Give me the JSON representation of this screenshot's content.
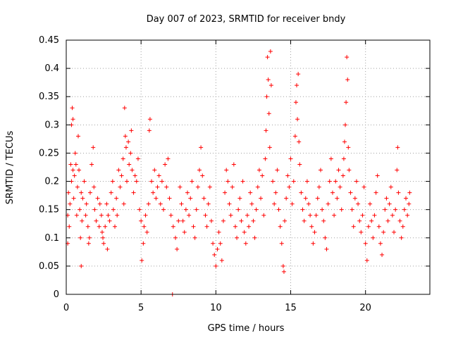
{
  "chart_data": {
    "type": "scatter",
    "title": "Day 007 of 2023, SRMTID for receiver bndy",
    "xlabel": "GPS time / hours",
    "ylabel": "SRMTID / TECUs",
    "xlim": [
      0,
      24.3
    ],
    "ylim": [
      0,
      0.45
    ],
    "x_ticks": [
      0,
      5,
      10,
      15,
      20
    ],
    "y_ticks": [
      0,
      0.05,
      0.1,
      0.15,
      0.2,
      0.25,
      0.3,
      0.35,
      0.4,
      0.45
    ],
    "x_tick_labels": [
      "0",
      "5",
      "10",
      "15",
      "20"
    ],
    "y_tick_labels": [
      "0",
      "0.05",
      "0.1",
      "0.15",
      "0.2",
      "0.25",
      "0.3",
      "0.35",
      "0.4",
      "0.45"
    ],
    "grid": true,
    "marker": "plus",
    "color": "#ff0000",
    "series": [
      {
        "name": "SRMTID",
        "points": [
          [
            0.1,
            0.14
          ],
          [
            0.1,
            0.09
          ],
          [
            0.15,
            0.18
          ],
          [
            0.2,
            0.12
          ],
          [
            0.25,
            0.16
          ],
          [
            0.3,
            0.23
          ],
          [
            0.35,
            0.3
          ],
          [
            0.35,
            0.2
          ],
          [
            0.4,
            0.33
          ],
          [
            0.45,
            0.31
          ],
          [
            0.45,
            0.22
          ],
          [
            0.5,
            0.17
          ],
          [
            0.55,
            0.21
          ],
          [
            0.6,
            0.25
          ],
          [
            0.65,
            0.23
          ],
          [
            0.7,
            0.14
          ],
          [
            0.75,
            0.19
          ],
          [
            0.8,
            0.28
          ],
          [
            0.85,
            0.22
          ],
          [
            0.9,
            0.15
          ],
          [
            0.95,
            0.1
          ],
          [
            1.0,
            0.05
          ],
          [
            1.0,
            0.18
          ],
          [
            1.05,
            0.13
          ],
          [
            1.1,
            0.17
          ],
          [
            1.2,
            0.2
          ],
          [
            1.3,
            0.14
          ],
          [
            1.35,
            0.16
          ],
          [
            1.45,
            0.12
          ],
          [
            1.5,
            0.09
          ],
          [
            1.55,
            0.1
          ],
          [
            1.6,
            0.18
          ],
          [
            1.7,
            0.23
          ],
          [
            1.8,
            0.26
          ],
          [
            1.85,
            0.19
          ],
          [
            1.9,
            0.15
          ],
          [
            2.0,
            0.13
          ],
          [
            2.1,
            0.17
          ],
          [
            2.2,
            0.12
          ],
          [
            2.25,
            0.16
          ],
          [
            2.35,
            0.14
          ],
          [
            2.4,
            0.11
          ],
          [
            2.45,
            0.1
          ],
          [
            2.5,
            0.09
          ],
          [
            2.6,
            0.12
          ],
          [
            2.7,
            0.16
          ],
          [
            2.75,
            0.08
          ],
          [
            2.8,
            0.14
          ],
          [
            2.9,
            0.13
          ],
          [
            3.0,
            0.18
          ],
          [
            3.1,
            0.2
          ],
          [
            3.15,
            0.15
          ],
          [
            3.25,
            0.12
          ],
          [
            3.35,
            0.17
          ],
          [
            3.4,
            0.14
          ],
          [
            3.5,
            0.22
          ],
          [
            3.6,
            0.19
          ],
          [
            3.7,
            0.21
          ],
          [
            3.8,
            0.24
          ],
          [
            3.85,
            0.16
          ],
          [
            3.9,
            0.33
          ],
          [
            3.95,
            0.28
          ],
          [
            4.0,
            0.26
          ],
          [
            4.05,
            0.2
          ],
          [
            4.15,
            0.27
          ],
          [
            4.2,
            0.23
          ],
          [
            4.3,
            0.25
          ],
          [
            4.35,
            0.29
          ],
          [
            4.4,
            0.22
          ],
          [
            4.5,
            0.18
          ],
          [
            4.6,
            0.21
          ],
          [
            4.7,
            0.2
          ],
          [
            4.8,
            0.24
          ],
          [
            4.9,
            0.15
          ],
          [
            5.0,
            0.13
          ],
          [
            5.05,
            0.06
          ],
          [
            5.15,
            0.09
          ],
          [
            5.2,
            0.12
          ],
          [
            5.3,
            0.14
          ],
          [
            5.4,
            0.11
          ],
          [
            5.5,
            0.16
          ],
          [
            5.55,
            0.29
          ],
          [
            5.6,
            0.31
          ],
          [
            5.7,
            0.2
          ],
          [
            5.8,
            0.18
          ],
          [
            5.9,
            0.22
          ],
          [
            6.0,
            0.17
          ],
          [
            6.1,
            0.19
          ],
          [
            6.2,
            0.21
          ],
          [
            6.3,
            0.16
          ],
          [
            6.4,
            0.2
          ],
          [
            6.5,
            0.15
          ],
          [
            6.6,
            0.23
          ],
          [
            6.7,
            0.19
          ],
          [
            6.8,
            0.24
          ],
          [
            6.9,
            0.17
          ],
          [
            7.0,
            0.14
          ],
          [
            7.1,
            0.0
          ],
          [
            7.15,
            0.12
          ],
          [
            7.3,
            0.1
          ],
          [
            7.4,
            0.08
          ],
          [
            7.5,
            0.13
          ],
          [
            7.6,
            0.19
          ],
          [
            7.7,
            0.16
          ],
          [
            7.8,
            0.13
          ],
          [
            7.9,
            0.11
          ],
          [
            8.0,
            0.15
          ],
          [
            8.1,
            0.18
          ],
          [
            8.2,
            0.14
          ],
          [
            8.3,
            0.17
          ],
          [
            8.4,
            0.2
          ],
          [
            8.5,
            0.12
          ],
          [
            8.6,
            0.1
          ],
          [
            8.7,
            0.15
          ],
          [
            8.8,
            0.19
          ],
          [
            8.9,
            0.22
          ],
          [
            9.0,
            0.26
          ],
          [
            9.1,
            0.21
          ],
          [
            9.2,
            0.17
          ],
          [
            9.3,
            0.14
          ],
          [
            9.4,
            0.12
          ],
          [
            9.5,
            0.16
          ],
          [
            9.6,
            0.19
          ],
          [
            9.7,
            0.13
          ],
          [
            9.8,
            0.09
          ],
          [
            9.9,
            0.07
          ],
          [
            10.0,
            0.05
          ],
          [
            10.1,
            0.08
          ],
          [
            10.2,
            0.11
          ],
          [
            10.3,
            0.09
          ],
          [
            10.4,
            0.06
          ],
          [
            10.5,
            0.13
          ],
          [
            10.6,
            0.18
          ],
          [
            10.7,
            0.22
          ],
          [
            10.8,
            0.2
          ],
          [
            10.9,
            0.16
          ],
          [
            11.0,
            0.14
          ],
          [
            11.1,
            0.19
          ],
          [
            11.2,
            0.23
          ],
          [
            11.3,
            0.12
          ],
          [
            11.4,
            0.1
          ],
          [
            11.5,
            0.15
          ],
          [
            11.6,
            0.17
          ],
          [
            11.7,
            0.13
          ],
          [
            11.8,
            0.2
          ],
          [
            11.9,
            0.11
          ],
          [
            12.0,
            0.09
          ],
          [
            12.1,
            0.14
          ],
          [
            12.2,
            0.12
          ],
          [
            12.3,
            0.18
          ],
          [
            12.4,
            0.16
          ],
          [
            12.5,
            0.13
          ],
          [
            12.6,
            0.1
          ],
          [
            12.7,
            0.15
          ],
          [
            12.8,
            0.19
          ],
          [
            12.9,
            0.22
          ],
          [
            13.0,
            0.17
          ],
          [
            13.1,
            0.21
          ],
          [
            13.2,
            0.14
          ],
          [
            13.3,
            0.24
          ],
          [
            13.35,
            0.29
          ],
          [
            13.4,
            0.35
          ],
          [
            13.45,
            0.42
          ],
          [
            13.5,
            0.38
          ],
          [
            13.55,
            0.32
          ],
          [
            13.6,
            0.26
          ],
          [
            13.65,
            0.43
          ],
          [
            13.7,
            0.37
          ],
          [
            13.8,
            0.2
          ],
          [
            13.9,
            0.16
          ],
          [
            14.0,
            0.18
          ],
          [
            14.1,
            0.22
          ],
          [
            14.2,
            0.15
          ],
          [
            14.3,
            0.12
          ],
          [
            14.4,
            0.09
          ],
          [
            14.5,
            0.05
          ],
          [
            14.55,
            0.04
          ],
          [
            14.6,
            0.13
          ],
          [
            14.7,
            0.17
          ],
          [
            14.8,
            0.21
          ],
          [
            14.9,
            0.19
          ],
          [
            15.0,
            0.24
          ],
          [
            15.1,
            0.16
          ],
          [
            15.2,
            0.2
          ],
          [
            15.3,
            0.28
          ],
          [
            15.35,
            0.34
          ],
          [
            15.4,
            0.37
          ],
          [
            15.45,
            0.31
          ],
          [
            15.5,
            0.39
          ],
          [
            15.55,
            0.27
          ],
          [
            15.6,
            0.23
          ],
          [
            15.7,
            0.18
          ],
          [
            15.8,
            0.15
          ],
          [
            15.9,
            0.13
          ],
          [
            16.0,
            0.17
          ],
          [
            16.1,
            0.2
          ],
          [
            16.2,
            0.16
          ],
          [
            16.3,
            0.14
          ],
          [
            16.4,
            0.12
          ],
          [
            16.5,
            0.09
          ],
          [
            16.6,
            0.11
          ],
          [
            16.7,
            0.14
          ],
          [
            16.8,
            0.17
          ],
          [
            16.9,
            0.19
          ],
          [
            17.0,
            0.22
          ],
          [
            17.1,
            0.15
          ],
          [
            17.2,
            0.13
          ],
          [
            17.3,
            0.1
          ],
          [
            17.4,
            0.08
          ],
          [
            17.5,
            0.16
          ],
          [
            17.6,
            0.2
          ],
          [
            17.7,
            0.24
          ],
          [
            17.8,
            0.18
          ],
          [
            17.9,
            0.14
          ],
          [
            18.0,
            0.2
          ],
          [
            18.1,
            0.17
          ],
          [
            18.2,
            0.22
          ],
          [
            18.3,
            0.19
          ],
          [
            18.4,
            0.15
          ],
          [
            18.5,
            0.21
          ],
          [
            18.55,
            0.24
          ],
          [
            18.6,
            0.27
          ],
          [
            18.65,
            0.3
          ],
          [
            18.7,
            0.34
          ],
          [
            18.75,
            0.42
          ],
          [
            18.8,
            0.38
          ],
          [
            18.85,
            0.26
          ],
          [
            18.9,
            0.22
          ],
          [
            19.0,
            0.18
          ],
          [
            19.1,
            0.15
          ],
          [
            19.2,
            0.12
          ],
          [
            19.3,
            0.17
          ],
          [
            19.4,
            0.2
          ],
          [
            19.5,
            0.16
          ],
          [
            19.6,
            0.13
          ],
          [
            19.7,
            0.11
          ],
          [
            19.8,
            0.14
          ],
          [
            19.9,
            0.19
          ],
          [
            20.0,
            0.09
          ],
          [
            20.1,
            0.06
          ],
          [
            20.2,
            0.12
          ],
          [
            20.3,
            0.16
          ],
          [
            20.4,
            0.13
          ],
          [
            20.5,
            0.1
          ],
          [
            20.6,
            0.14
          ],
          [
            20.7,
            0.18
          ],
          [
            20.8,
            0.21
          ],
          [
            20.9,
            0.12
          ],
          [
            21.0,
            0.09
          ],
          [
            21.1,
            0.07
          ],
          [
            21.2,
            0.11
          ],
          [
            21.3,
            0.15
          ],
          [
            21.4,
            0.17
          ],
          [
            21.5,
            0.13
          ],
          [
            21.6,
            0.16
          ],
          [
            21.7,
            0.19
          ],
          [
            21.8,
            0.14
          ],
          [
            21.9,
            0.11
          ],
          [
            22.0,
            0.15
          ],
          [
            22.1,
            0.22
          ],
          [
            22.15,
            0.26
          ],
          [
            22.2,
            0.18
          ],
          [
            22.3,
            0.13
          ],
          [
            22.4,
            0.1
          ],
          [
            22.5,
            0.12
          ],
          [
            22.6,
            0.15
          ],
          [
            22.7,
            0.17
          ],
          [
            22.8,
            0.14
          ],
          [
            22.9,
            0.16
          ],
          [
            22.95,
            0.18
          ]
        ]
      }
    ]
  }
}
